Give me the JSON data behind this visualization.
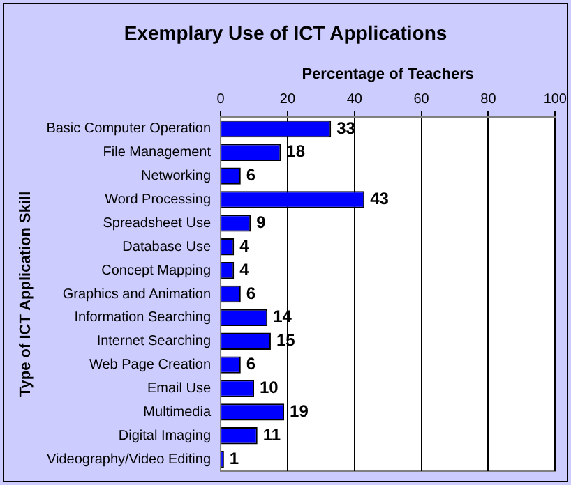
{
  "chart_data": {
    "type": "bar",
    "orientation": "horizontal",
    "title": "Exemplary Use of ICT Applications",
    "xlabel": "Percentage of Teachers",
    "ylabel": "Type of ICT Application Skill",
    "categories": [
      "Basic Computer Operation",
      "File Management",
      "Networking",
      "Word Processing",
      "Spreadsheet Use",
      "Database Use",
      "Concept Mapping",
      "Graphics and Animation",
      "Information Searching",
      "Internet Searching",
      "Web Page Creation",
      "Email Use",
      "Multimedia",
      "Digital Imaging",
      "Videography/Video Editing"
    ],
    "values": [
      33,
      18,
      6,
      43,
      9,
      4,
      4,
      6,
      14,
      15,
      6,
      10,
      19,
      11,
      1
    ],
    "color": "#0000ff",
    "xlim": [
      0,
      100
    ],
    "xticks": [
      0,
      20,
      40,
      60,
      80,
      100
    ],
    "grid": "x",
    "legend": false,
    "data_labels": true
  }
}
